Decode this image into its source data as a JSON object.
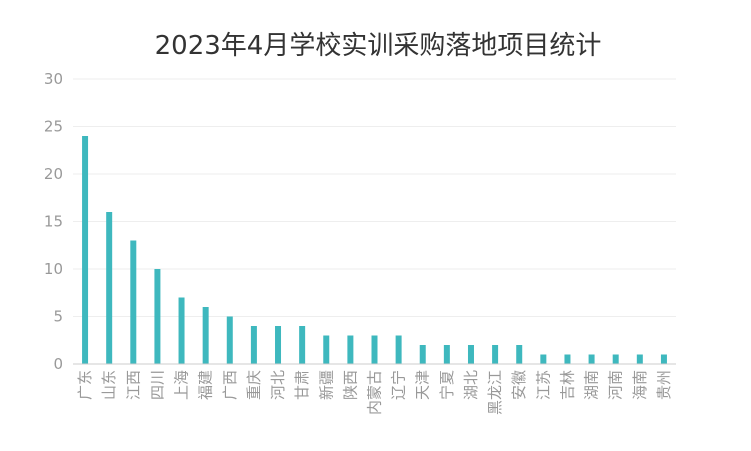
{
  "chart_data": {
    "type": "bar",
    "title": "2023年4月学校实训采购落地项目统计",
    "xlabel": "",
    "ylabel": "",
    "ylim": [
      0,
      30
    ],
    "yticks": [
      0,
      5,
      10,
      15,
      20,
      25,
      30
    ],
    "grid": true,
    "legend": "none",
    "bar_color": "#3EB8BE",
    "categories": [
      "广东",
      "山东",
      "江西",
      "四川",
      "上海",
      "福建",
      "广西",
      "重庆",
      "河北",
      "甘肃",
      "新疆",
      "陕西",
      "内蒙古",
      "辽宁",
      "天津",
      "宁夏",
      "湖北",
      "黑龙江",
      "安徽",
      "江苏",
      "吉林",
      "湖南",
      "河南",
      "海南",
      "贵州"
    ],
    "values": [
      24,
      16,
      13,
      10,
      7,
      6,
      5,
      4,
      4,
      4,
      3,
      3,
      3,
      3,
      2,
      2,
      2,
      2,
      2,
      1,
      1,
      1,
      1,
      1,
      1
    ]
  }
}
